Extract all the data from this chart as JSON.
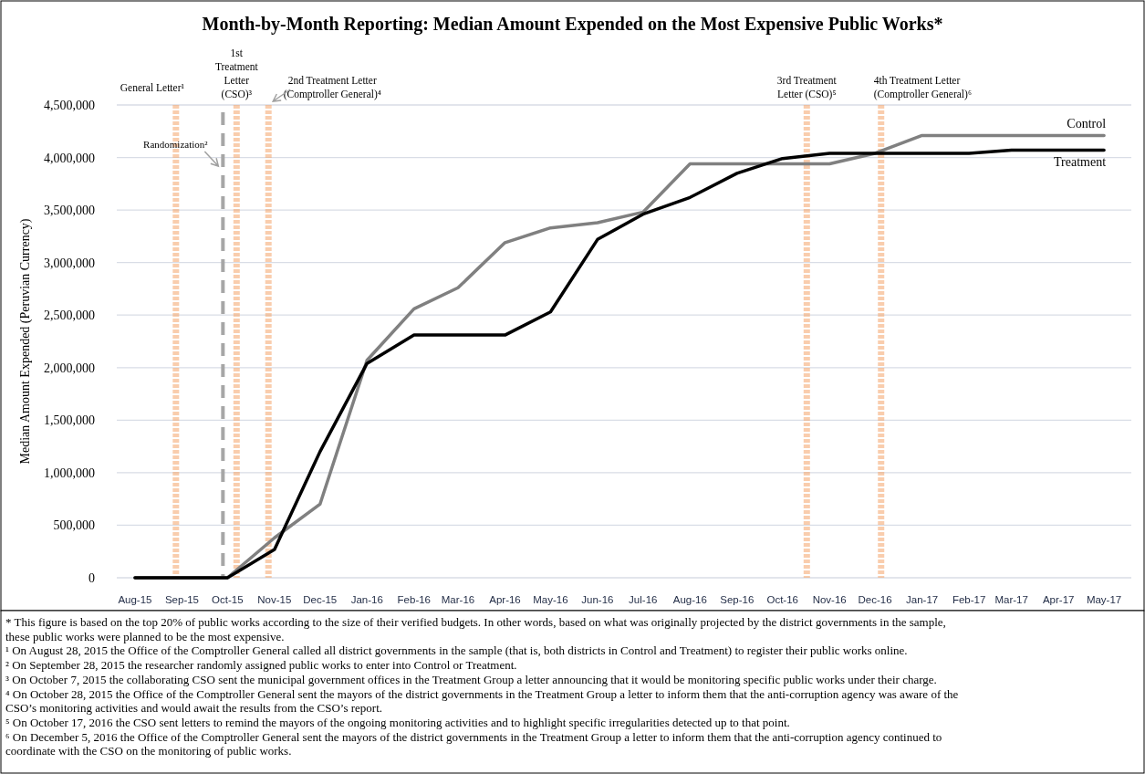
{
  "chart_data": {
    "type": "line",
    "title": "Month-by-Month Reporting: Median Amount Expended on the Most Expensive Public Works*",
    "ylabel": "Median Amount Expended (Peruvian Currency)",
    "x": [
      "2015-08",
      "2015-09",
      "2015-10",
      "2015-11",
      "2015-12",
      "2016-01",
      "2016-02",
      "2016-03",
      "2016-04",
      "2016-05",
      "2016-06",
      "2016-07",
      "2016-08",
      "2016-09",
      "2016-10",
      "2016-11",
      "2016-12",
      "2017-01",
      "2017-02",
      "2017-03",
      "2017-04",
      "2017-05"
    ],
    "series": [
      {
        "name": "Control",
        "color": "#808080",
        "values": [
          0,
          0,
          0,
          380000,
          700000,
          2070000,
          2560000,
          2760000,
          3190000,
          3330000,
          3380000,
          3480000,
          3940000,
          3940000,
          3940000,
          3940000,
          4040000,
          4210000,
          4210000,
          4210000,
          4210000,
          4210000
        ]
      },
      {
        "name": "Treatment",
        "color": "#000000",
        "values": [
          0,
          0,
          0,
          270000,
          1200000,
          2040000,
          2310000,
          2310000,
          2310000,
          2530000,
          3220000,
          3460000,
          3620000,
          3850000,
          3990000,
          4040000,
          4040000,
          4040000,
          4040000,
          4070000,
          4070000,
          4070000
        ]
      }
    ],
    "xlim": [
      "2015-07-20",
      "2017-05-19"
    ],
    "xticks": [
      {
        "value": "2015-08",
        "label": "Aug-15"
      },
      {
        "value": "2015-09",
        "label": "Sep-15"
      },
      {
        "value": "2015-10",
        "label": "Oct-15"
      },
      {
        "value": "2015-11",
        "label": "Nov-15"
      },
      {
        "value": "2015-12",
        "label": "Dec-15"
      },
      {
        "value": "2016-01",
        "label": "Jan-16"
      },
      {
        "value": "2016-02",
        "label": "Feb-16"
      },
      {
        "value": "2016-03",
        "label": "Mar-16"
      },
      {
        "value": "2016-04",
        "label": "Apr-16"
      },
      {
        "value": "2016-05",
        "label": "May-16"
      },
      {
        "value": "2016-06",
        "label": "Jun-16"
      },
      {
        "value": "2016-07",
        "label": "Jul-16"
      },
      {
        "value": "2016-08",
        "label": "Aug-16"
      },
      {
        "value": "2016-09",
        "label": "Sep-16"
      },
      {
        "value": "2016-10",
        "label": "Oct-16"
      },
      {
        "value": "2016-11",
        "label": "Nov-16"
      },
      {
        "value": "2016-12",
        "label": "Dec-16"
      },
      {
        "value": "2017-01",
        "label": "Jan-17"
      },
      {
        "value": "2017-02",
        "label": "Feb-17"
      },
      {
        "value": "2017-03",
        "label": "Mar-17"
      },
      {
        "value": "2017-04",
        "label": "Apr-17"
      },
      {
        "value": "2017-05",
        "label": "May-17"
      }
    ],
    "ylim": [
      0,
      4500000
    ],
    "yticks": [
      {
        "value": 0,
        "label": "0"
      },
      {
        "value": 500000,
        "label": "500,000"
      },
      {
        "value": 1000000,
        "label": "1,000,000"
      },
      {
        "value": 1500000,
        "label": "1,500,000"
      },
      {
        "value": 2000000,
        "label": "2,000,000"
      },
      {
        "value": 2500000,
        "label": "2,500,000"
      },
      {
        "value": 3000000,
        "label": "3,000,000"
      },
      {
        "value": 3500000,
        "label": "3,500,000"
      },
      {
        "value": 4000000,
        "label": "4,000,000"
      },
      {
        "value": 4500000,
        "label": "4,500,000"
      }
    ],
    "grid": "y",
    "ref_lines": [
      {
        "axis": "x",
        "value": "2015-08-28",
        "label": "General Letter¹",
        "color": "#f4a46a",
        "line_style": "dotted"
      },
      {
        "axis": "x",
        "value": "2015-09-28",
        "label": "Randomization²",
        "color": "#a6a6a6",
        "line_style": "dashed"
      },
      {
        "axis": "x",
        "value": "2015-10-07",
        "label": "1st Treatment Letter (CSO)³",
        "color": "#f4a46a",
        "line_style": "dotted"
      },
      {
        "axis": "x",
        "value": "2015-10-28",
        "label": "2nd Treatment Letter (Comptroller General)⁴",
        "color": "#f4a46a",
        "line_style": "dotted"
      },
      {
        "axis": "x",
        "value": "2016-10-17",
        "label": "3rd Treatment Letter (CSO)⁵",
        "color": "#f4a46a",
        "line_style": "dotted"
      },
      {
        "axis": "x",
        "value": "2016-12-05",
        "label": "4th Treatment Letter (Comptroller General)⁶",
        "color": "#f4a46a",
        "line_style": "dotted"
      }
    ],
    "annotations": [
      "* This figure is based on the top 20% of public works according to the size of their verified budgets. In other words, based on what was originally projected by the district governments in the sample, these public works were planned to be the most expensive.",
      "¹ On August 28, 2015 the Office of the Comptroller General called all district governments in the sample (that is, both districts in Control and Treatment) to register their public works online.",
      "² On September 28, 2015 the researcher randomly assigned public works to enter into Control or Treatment.",
      "³ On October 7, 2015 the collaborating CSO sent the municipal government offices in the Treatment Group a letter announcing that it would be monitoring specific public works under their charge.",
      "⁴ On October 28, 2015 the Office of the Comptroller General sent the mayors of the district governments in the Treatment Group a letter to inform them that the anti-corruption agency was aware of the CSO’s monitoring activities and would await the results from the CSO’s report.",
      "⁵ On October 17, 2016 the CSO sent letters to remind the mayors of the ongoing monitoring activities and to highlight specific irregularities detected up to that point.",
      "⁶ On December 5, 2016 the Office of the Comptroller General sent the mayors of the district governments in the Treatment Group a letter to inform them that the anti-corruption agency continued to coordinate with the CSO on the monitoring of public works."
    ]
  }
}
